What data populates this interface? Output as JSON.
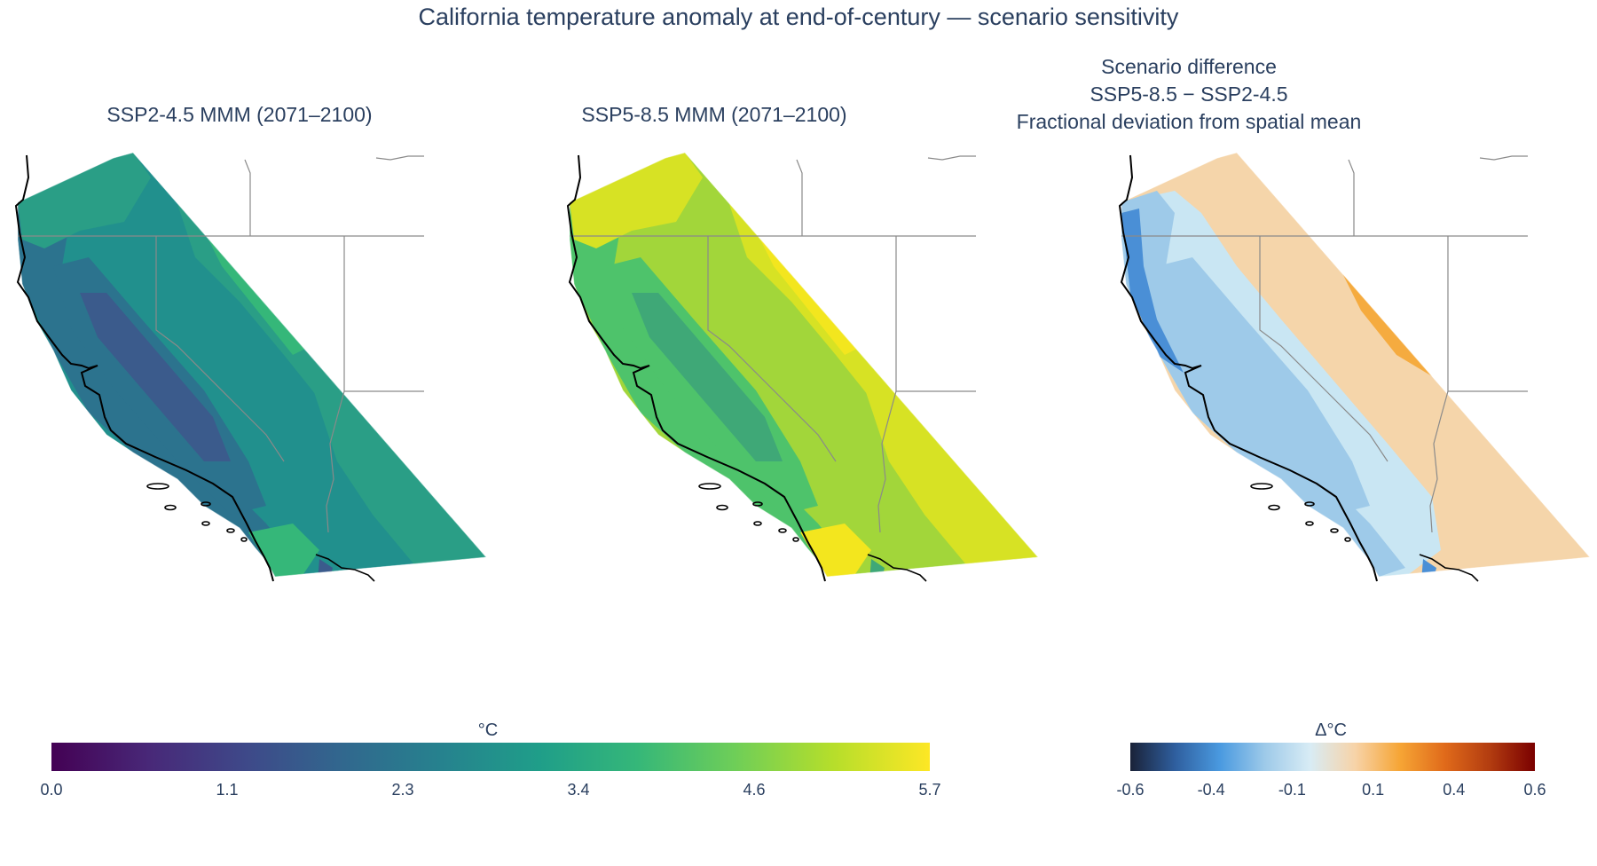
{
  "title": "California temperature anomaly at end-of-century — scenario sensitivity",
  "panels": [
    {
      "title_lines": [
        "SSP2-4.5 MMM (2071–2100)"
      ]
    },
    {
      "title_lines": [
        "SSP5-8.5 MMM (2071–2100)"
      ]
    },
    {
      "title_lines": [
        "Scenario difference",
        "SSP5-8.5 − SSP2-4.5",
        "Fractional deviation from spatial mean"
      ]
    }
  ],
  "colorbars": {
    "temperature": {
      "label": "°C",
      "ticks": [
        "0.0",
        "1.1",
        "2.3",
        "3.4",
        "4.6",
        "5.7"
      ],
      "range": [
        0,
        5.7
      ],
      "colors": [
        "#440154",
        "#482878",
        "#3e4989",
        "#31688e",
        "#26828e",
        "#1f9e89",
        "#35b779",
        "#6ece58",
        "#b5de2b",
        "#fde725"
      ]
    },
    "difference": {
      "label": "Δ°C",
      "ticks": [
        "-0.6",
        "-0.4",
        "-0.1",
        "0.1",
        "0.4",
        "0.6"
      ],
      "range": [
        -0.6,
        0.6
      ],
      "colors": [
        "#1a2238",
        "#2f5f9f",
        "#4a9ae0",
        "#9ecae9",
        "#d8ecf5",
        "#f7d3a8",
        "#f6a535",
        "#e06a1a",
        "#b23c10",
        "#7a0000"
      ]
    }
  },
  "map_colors": {
    "ssp245": {
      "base": "#21908d",
      "low": "#2c738e",
      "lower": "#3b5b8c",
      "high": "#2a9e86",
      "highest": "#35b779"
    },
    "ssp585": {
      "base": "#a2d63a",
      "low": "#4ec36b",
      "lower": "#3fa877",
      "high": "#d7e224",
      "highest": "#f3e61e"
    },
    "diff": {
      "base": "#f5d5aa",
      "neg": "#c9e6f3",
      "neg2": "#9ecae9",
      "neg3": "#4a8fd6",
      "pos": "#f5ab3f"
    }
  }
}
